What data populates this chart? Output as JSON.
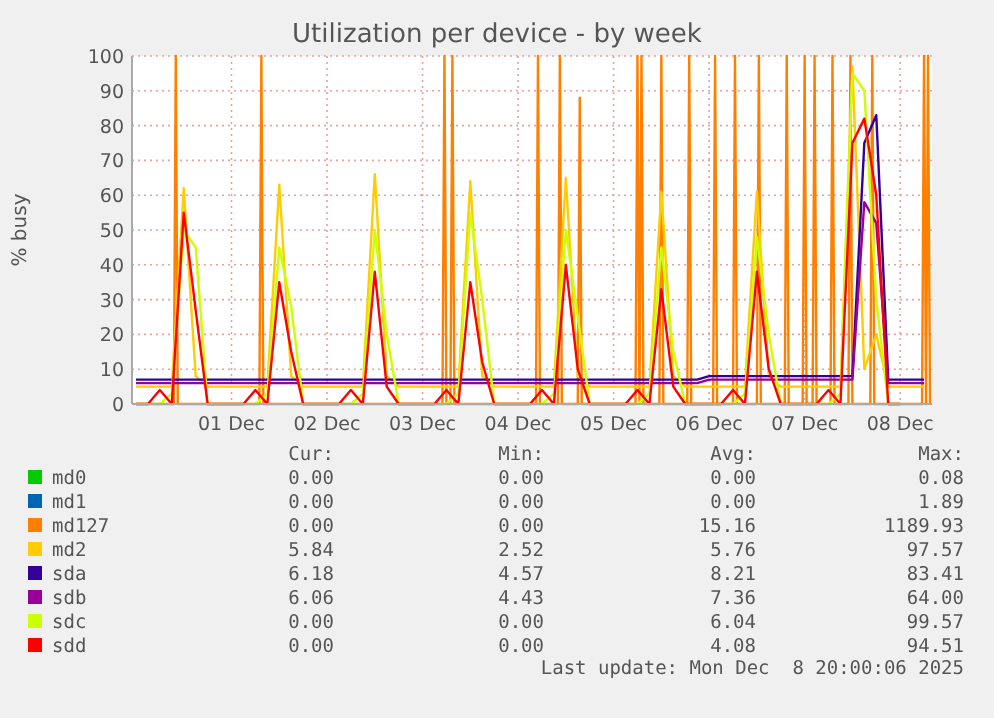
{
  "chart_data": {
    "type": "line",
    "title": "Utilization per device - by week",
    "ylabel": "% busy",
    "x": [
      "2025-11-30T00:00",
      "2025-11-30T03:00",
      "2025-11-30T06:00",
      "2025-11-30T09:00",
      "2025-11-30T12:00",
      "2025-11-30T15:00",
      "2025-11-30T18:00",
      "2025-11-30T21:00",
      "2025-12-01T00:00",
      "2025-12-01T03:00",
      "2025-12-01T06:00",
      "2025-12-01T09:00",
      "2025-12-01T12:00",
      "2025-12-01T15:00",
      "2025-12-01T18:00",
      "2025-12-01T21:00",
      "2025-12-02T00:00",
      "2025-12-02T03:00",
      "2025-12-02T06:00",
      "2025-12-02T09:00",
      "2025-12-02T12:00",
      "2025-12-02T15:00",
      "2025-12-02T18:00",
      "2025-12-02T21:00",
      "2025-12-03T00:00",
      "2025-12-03T03:00",
      "2025-12-03T06:00",
      "2025-12-03T09:00",
      "2025-12-03T12:00",
      "2025-12-03T15:00",
      "2025-12-03T18:00",
      "2025-12-03T21:00",
      "2025-12-04T00:00",
      "2025-12-04T03:00",
      "2025-12-04T06:00",
      "2025-12-04T09:00",
      "2025-12-04T12:00",
      "2025-12-04T15:00",
      "2025-12-04T18:00",
      "2025-12-04T21:00",
      "2025-12-05T00:00",
      "2025-12-05T03:00",
      "2025-12-05T06:00",
      "2025-12-05T09:00",
      "2025-12-05T12:00",
      "2025-12-05T15:00",
      "2025-12-05T18:00",
      "2025-12-05T21:00",
      "2025-12-06T00:00",
      "2025-12-06T03:00",
      "2025-12-06T06:00",
      "2025-12-06T09:00",
      "2025-12-06T12:00",
      "2025-12-06T15:00",
      "2025-12-06T18:00",
      "2025-12-06T21:00",
      "2025-12-07T00:00",
      "2025-12-07T03:00",
      "2025-12-07T06:00",
      "2025-12-07T09:00",
      "2025-12-07T12:00",
      "2025-12-07T15:00",
      "2025-12-07T18:00",
      "2025-12-07T21:00",
      "2025-12-08T00:00",
      "2025-12-08T03:00",
      "2025-12-08T06:00"
    ],
    "xlim": [
      "2025-11-29T23:00",
      "2025-12-08T08:00"
    ],
    "xticks": [
      {
        "value": "2025-12-01",
        "label": "01 Dec"
      },
      {
        "value": "2025-12-02",
        "label": "02 Dec"
      },
      {
        "value": "2025-12-03",
        "label": "03 Dec"
      },
      {
        "value": "2025-12-04",
        "label": "04 Dec"
      },
      {
        "value": "2025-12-05",
        "label": "05 Dec"
      },
      {
        "value": "2025-12-06",
        "label": "06 Dec"
      },
      {
        "value": "2025-12-07",
        "label": "07 Dec"
      },
      {
        "value": "2025-12-08",
        "label": "08 Dec"
      }
    ],
    "ylim": [
      0,
      100
    ],
    "yticks": [
      0,
      10,
      20,
      30,
      40,
      50,
      60,
      70,
      80,
      90,
      100
    ],
    "grid": true,
    "legend": "bottom",
    "series": [
      {
        "name": "md0",
        "color": "#00cc00",
        "values": [
          null,
          null,
          null,
          null,
          null,
          null,
          null,
          null,
          null,
          null,
          null,
          null,
          null,
          null,
          null,
          null,
          null,
          null,
          null,
          null,
          null,
          null,
          null,
          null,
          null,
          null,
          null,
          null,
          null,
          null,
          null,
          null,
          null,
          null,
          null,
          null,
          null,
          null,
          null,
          null,
          null,
          null,
          null,
          null,
          null,
          null,
          null,
          null,
          null,
          null,
          null,
          null,
          null,
          null,
          null,
          null,
          null,
          null,
          null,
          null,
          null,
          null,
          null,
          null,
          null,
          null,
          null
        ]
      },
      {
        "name": "md1",
        "color": "#0066b3",
        "values": [
          null,
          null,
          null,
          null,
          null,
          null,
          null,
          null,
          null,
          null,
          null,
          null,
          null,
          null,
          null,
          null,
          null,
          null,
          null,
          null,
          null,
          null,
          null,
          null,
          null,
          null,
          null,
          null,
          null,
          null,
          null,
          null,
          null,
          null,
          null,
          null,
          null,
          null,
          null,
          null,
          null,
          null,
          null,
          null,
          null,
          null,
          null,
          null,
          null,
          null,
          null,
          null,
          null,
          null,
          null,
          null,
          null,
          null,
          null,
          null,
          null,
          null,
          null,
          null,
          null,
          null,
          null
        ]
      },
      {
        "name": "md127",
        "color": "#ff8000",
        "x": [
          "2025-11-30T00:00",
          "2025-11-30T09:30",
          "2025-11-30T10:00",
          "2025-11-30T10:30",
          "2025-12-01T07:00",
          "2025-12-01T07:30",
          "2025-12-01T08:00",
          "2025-12-03T05:00",
          "2025-12-03T05:30",
          "2025-12-03T06:00",
          "2025-12-03T07:00",
          "2025-12-03T07:30",
          "2025-12-03T08:00",
          "2025-12-04T04:30",
          "2025-12-04T05:00",
          "2025-12-04T05:30",
          "2025-12-04T10:00",
          "2025-12-04T10:30",
          "2025-12-04T11:00",
          "2025-12-04T15:00",
          "2025-12-04T15:30",
          "2025-12-04T16:00",
          "2025-12-05T05:30",
          "2025-12-05T06:00",
          "2025-12-05T06:30",
          "2025-12-05T06:30",
          "2025-12-05T07:00",
          "2025-12-05T07:30",
          "2025-12-05T11:30",
          "2025-12-05T12:00",
          "2025-12-05T12:30",
          "2025-12-05T18:30",
          "2025-12-05T19:00",
          "2025-12-05T19:30",
          "2025-12-06T01:00",
          "2025-12-06T01:30",
          "2025-12-06T02:00",
          "2025-12-06T06:00",
          "2025-12-06T06:30",
          "2025-12-06T07:00",
          "2025-12-06T12:00",
          "2025-12-06T12:30",
          "2025-12-06T13:00",
          "2025-12-06T19:00",
          "2025-12-06T19:30",
          "2025-12-06T20:00",
          "2025-12-06T23:30",
          "2025-12-07T00:00",
          "2025-12-07T00:30",
          "2025-12-07T02:00",
          "2025-12-07T02:30",
          "2025-12-07T03:00",
          "2025-12-07T06:30",
          "2025-12-07T07:00",
          "2025-12-07T07:30",
          "2025-12-07T11:00",
          "2025-12-07T11:30",
          "2025-12-07T12:00",
          "2025-12-07T16:30",
          "2025-12-07T17:00",
          "2025-12-07T17:30",
          "2025-12-08T05:30",
          "2025-12-08T06:00",
          "2025-12-08T06:30",
          "2025-12-08T06:30",
          "2025-12-08T07:00",
          "2025-12-08T07:30"
        ],
        "values": [
          0,
          0,
          100,
          0,
          0,
          100,
          0,
          0,
          100,
          0,
          0,
          100,
          0,
          0,
          100,
          0,
          0,
          100,
          0,
          0,
          88,
          0,
          0,
          100,
          0,
          0,
          100,
          0,
          0,
          100,
          0,
          0,
          100,
          0,
          0,
          100,
          0,
          0,
          100,
          0,
          0,
          100,
          0,
          0,
          100,
          0,
          0,
          100,
          0,
          0,
          100,
          0,
          0,
          100,
          0,
          0,
          100,
          0,
          0,
          100,
          0,
          0,
          100,
          0,
          0,
          100,
          0
        ]
      },
      {
        "name": "md2",
        "color": "#ffcc00",
        "values": [
          5,
          5,
          5,
          5,
          62,
          8,
          5,
          5,
          5,
          5,
          5,
          5,
          63,
          8,
          5,
          5,
          5,
          5,
          5,
          5,
          66,
          8,
          5,
          5,
          5,
          5,
          5,
          5,
          64,
          8,
          5,
          5,
          5,
          5,
          5,
          5,
          65,
          8,
          5,
          5,
          5,
          5,
          5,
          5,
          61,
          8,
          5,
          5,
          5,
          5,
          5,
          5,
          61,
          8,
          5,
          5,
          5,
          5,
          5,
          5,
          97,
          10,
          20,
          5,
          5,
          5,
          5
        ]
      },
      {
        "name": "sda",
        "color": "#330099",
        "values": [
          7,
          7,
          7,
          7,
          7,
          7,
          7,
          7,
          7,
          7,
          7,
          7,
          7,
          7,
          7,
          7,
          7,
          7,
          7,
          7,
          7,
          7,
          7,
          7,
          7,
          7,
          7,
          7,
          7,
          7,
          7,
          7,
          7,
          7,
          7,
          7,
          7,
          7,
          7,
          7,
          7,
          7,
          7,
          7,
          7,
          7,
          7,
          7,
          8,
          8,
          8,
          8,
          8,
          8,
          8,
          8,
          8,
          8,
          8,
          8,
          8,
          75,
          83,
          7,
          7,
          7,
          7
        ]
      },
      {
        "name": "sdb",
        "color": "#990099",
        "values": [
          6,
          6,
          6,
          6,
          6,
          6,
          6,
          6,
          6,
          6,
          6,
          6,
          6,
          6,
          6,
          6,
          6,
          6,
          6,
          6,
          6,
          6,
          6,
          6,
          6,
          6,
          6,
          6,
          6,
          6,
          6,
          6,
          6,
          6,
          6,
          6,
          6,
          6,
          6,
          6,
          6,
          6,
          6,
          6,
          6,
          6,
          6,
          6,
          7,
          7,
          7,
          7,
          7,
          7,
          7,
          7,
          7,
          7,
          7,
          7,
          7,
          58,
          52,
          6,
          6,
          6,
          6
        ]
      },
      {
        "name": "sdc",
        "color": "#ccff00",
        "values": [
          0,
          0,
          0,
          3,
          50,
          45,
          0,
          0,
          0,
          0,
          0,
          3,
          45,
          28,
          0,
          0,
          0,
          0,
          0,
          3,
          50,
          20,
          0,
          0,
          0,
          0,
          0,
          3,
          55,
          30,
          0,
          0,
          0,
          0,
          0,
          3,
          50,
          25,
          0,
          0,
          0,
          0,
          0,
          3,
          45,
          15,
          0,
          0,
          0,
          0,
          0,
          3,
          48,
          20,
          0,
          0,
          0,
          0,
          0,
          3,
          95,
          90,
          30,
          0,
          0,
          null,
          null
        ]
      },
      {
        "name": "sdd",
        "color": "#ff0000",
        "values": [
          0,
          0,
          4,
          0,
          55,
          27,
          0,
          0,
          0,
          0,
          4,
          0,
          35,
          15,
          0,
          0,
          0,
          0,
          4,
          0,
          38,
          5,
          0,
          0,
          0,
          0,
          4,
          0,
          35,
          12,
          0,
          0,
          0,
          0,
          4,
          0,
          40,
          10,
          0,
          0,
          0,
          0,
          4,
          0,
          33,
          5,
          0,
          0,
          0,
          0,
          4,
          0,
          38,
          10,
          0,
          0,
          0,
          0,
          4,
          0,
          75,
          82,
          60,
          0,
          0,
          null,
          null
        ]
      }
    ],
    "annotations": [
      "Cur:",
      "Min:",
      "Avg:",
      "Max:",
      "0.00",
      "0.00",
      "0.00",
      "0.08",
      "0.00",
      "0.00",
      "0.00",
      "1.89",
      "0.00",
      "0.00",
      "15.16",
      "1189.93",
      "5.84",
      "2.52",
      "5.76",
      "97.57",
      "6.18",
      "4.57",
      "8.21",
      "83.41",
      "6.06",
      "4.43",
      "7.36",
      "64.00",
      "0.00",
      "0.00",
      "6.04",
      "99.57",
      "0.00",
      "0.00",
      "4.08",
      "94.51",
      "Last update: Mon Dec  8 20:00:06 2025"
    ]
  }
}
